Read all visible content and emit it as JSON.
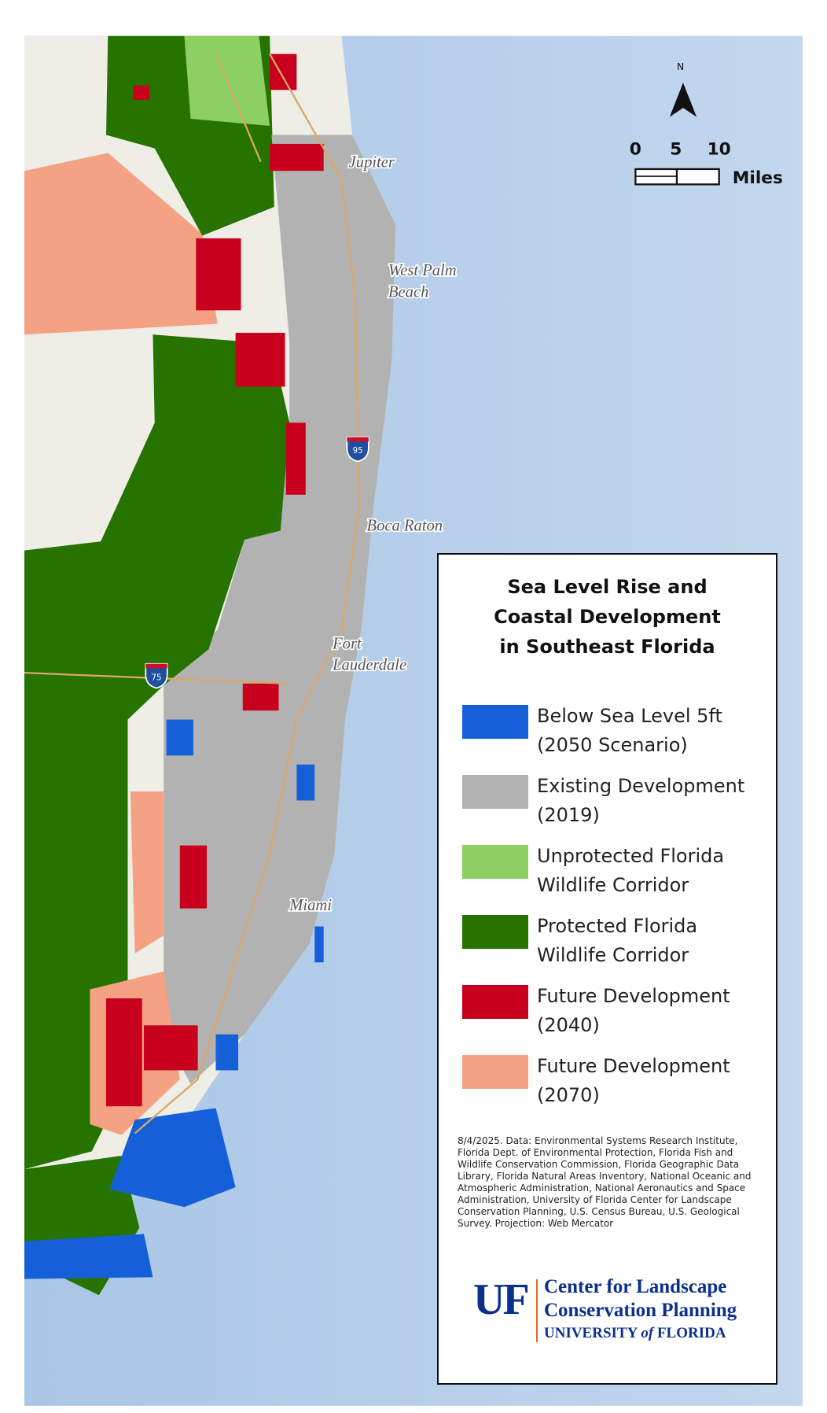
{
  "map": {
    "cities": [
      [
        "Jupiter"
      ],
      [
        "West Palm",
        "Beach"
      ],
      [
        "Boca Raton"
      ],
      [
        "Fort",
        "Lauderdale"
      ],
      [
        "Miami"
      ]
    ],
    "highways": [
      "95",
      "75"
    ],
    "north": "N",
    "scale_ticks": [
      0,
      5,
      10
    ],
    "scale_unit": "Miles"
  },
  "legend": {
    "title": [
      "Sea Level Rise and",
      "Coastal Development",
      "in Southeast Florida"
    ],
    "items": [
      {
        "label": [
          "Below Sea Level 5ft",
          "(2050 Scenario)"
        ],
        "color": "#1560d8"
      },
      {
        "label": [
          "Existing Development",
          "(2019)"
        ],
        "color": "#b2b2b2"
      },
      {
        "label": [
          "Unprotected Florida",
          "Wildlife Corridor"
        ],
        "color": "#8cd064"
      },
      {
        "label": [
          "Protected Florida",
          "Wildlife Corridor"
        ],
        "color": "#267300"
      },
      {
        "label": [
          "Future Development",
          "(2040)"
        ],
        "color": "#c8001e"
      },
      {
        "label": [
          "Future Development",
          "(2070)"
        ],
        "color": "#f4a283"
      }
    ],
    "credits": "8/4/2025.  Data: Environmental Systems Research Institute, Florida Dept. of Environmental Protection, Florida Fish and Wildlife Conservation Commission, Florida Geographic Data Library, Florida Natural Areas Inventory, National Oceanic and Atmospheric Administration, National Aeronautics and Space Administration, University of Florida Center for Landscape Conservation Planning, U.S. Census Bureau, U.S. Geological Survey. Projection: Web Mercator",
    "logo": {
      "mark": "UF",
      "lines": [
        "Center for Landscape",
        "Conservation Planning"
      ],
      "university": [
        "UNIVERSITY",
        "of",
        "FLORIDA"
      ]
    }
  }
}
